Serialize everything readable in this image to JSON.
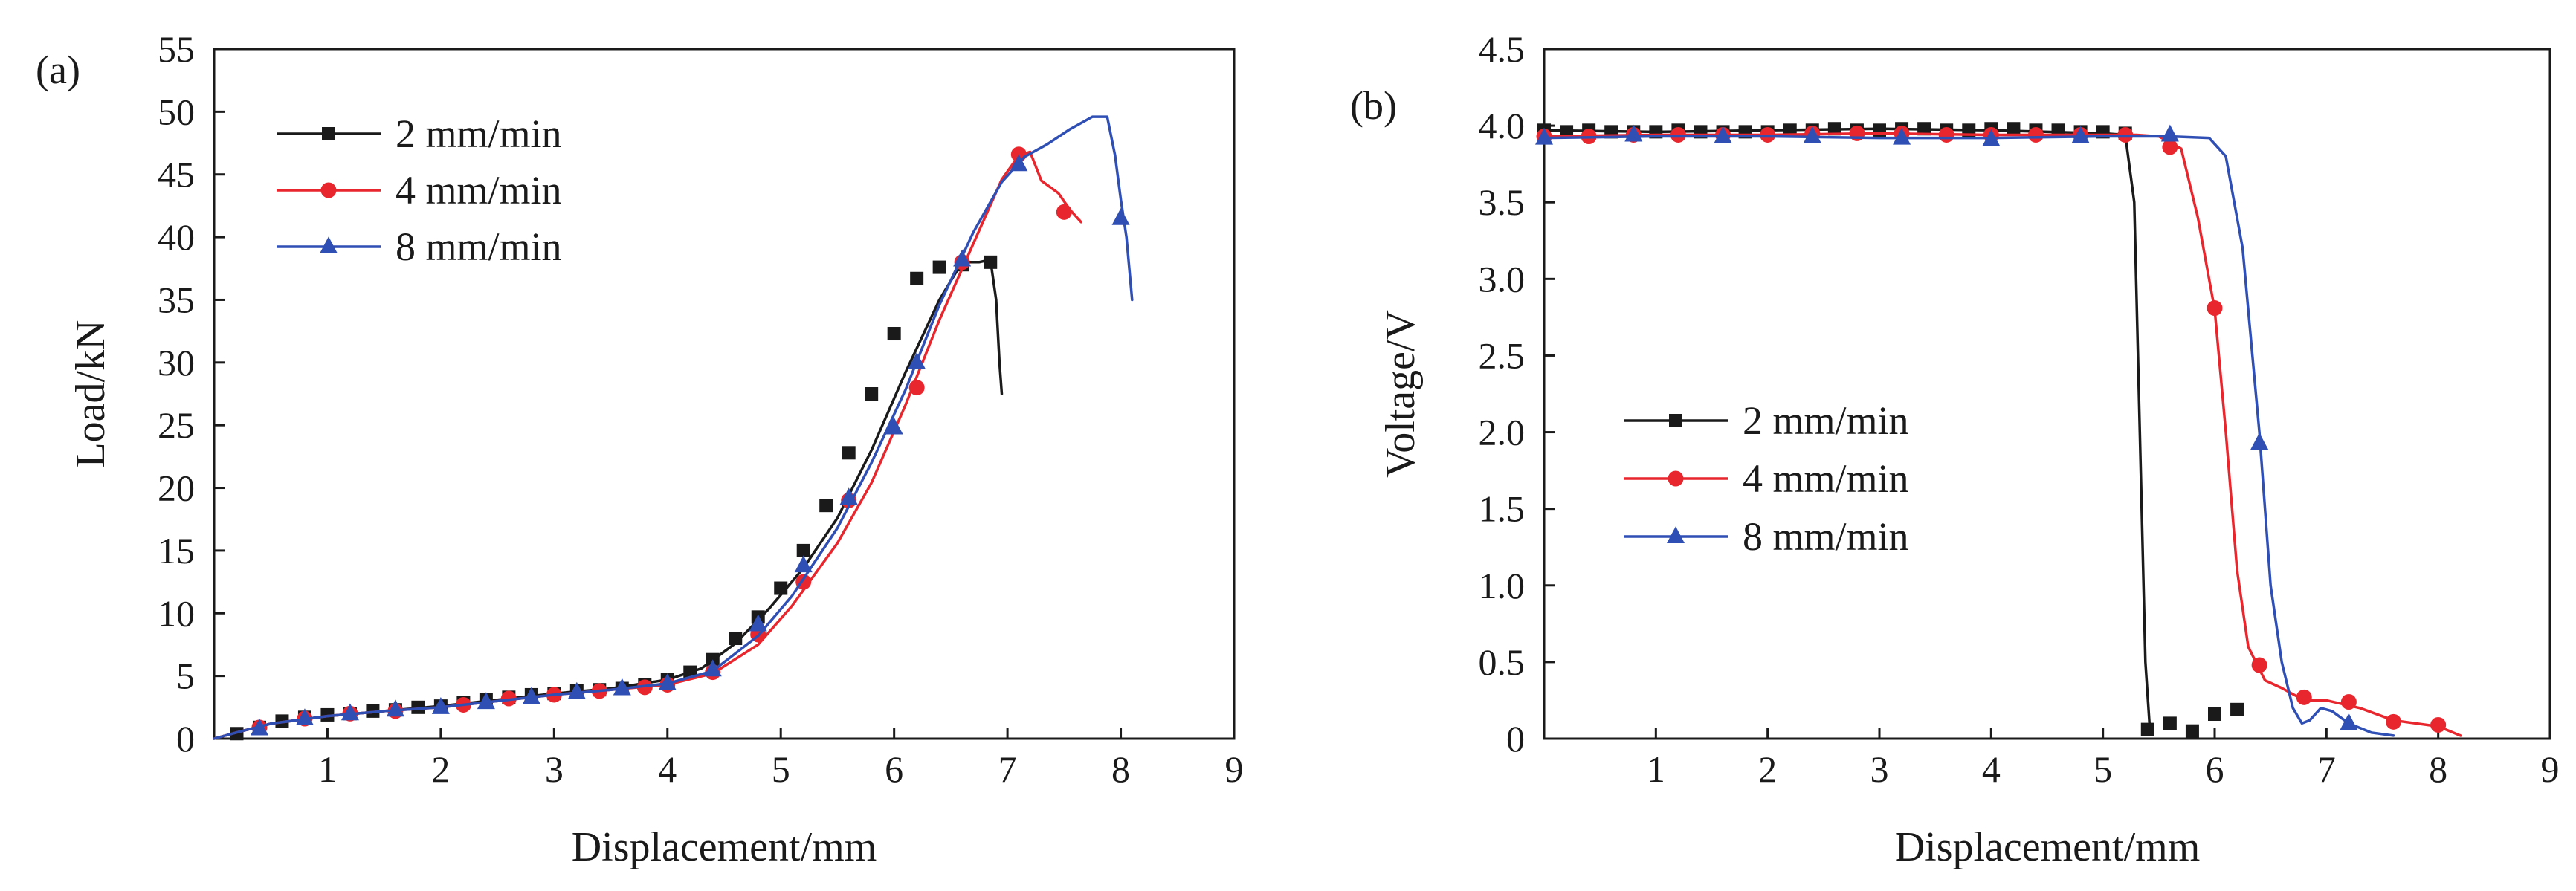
{
  "chart_data": [
    {
      "type": "line",
      "panel_label": "(a)",
      "xlabel": "Displacement/mm",
      "ylabel": "Load/kN",
      "xlim": [
        0,
        9
      ],
      "ylim": [
        0,
        55
      ],
      "xticks": [
        1,
        2,
        3,
        4,
        5,
        6,
        7,
        8,
        9
      ],
      "yticks": [
        0,
        5,
        10,
        15,
        20,
        25,
        30,
        35,
        40,
        45,
        50,
        55
      ],
      "legend_position": "top-left",
      "series": [
        {
          "name": "2 mm/min",
          "color": "#1a1a1a",
          "marker": "square",
          "line": [
            [
              0,
              0
            ],
            [
              0.2,
              0.5
            ],
            [
              0.5,
              1.2
            ],
            [
              1,
              1.8
            ],
            [
              1.5,
              2.2
            ],
            [
              2,
              2.6
            ],
            [
              2.5,
              3.1
            ],
            [
              3,
              3.6
            ],
            [
              3.5,
              4.0
            ],
            [
              4,
              4.7
            ],
            [
              4.3,
              5.6
            ],
            [
              4.6,
              7.6
            ],
            [
              4.9,
              10.4
            ],
            [
              5.2,
              13.6
            ],
            [
              5.5,
              17.6
            ],
            [
              5.8,
              23.0
            ],
            [
              6.1,
              29.2
            ],
            [
              6.4,
              35.0
            ],
            [
              6.6,
              38.0
            ],
            [
              6.75,
              38.0
            ],
            [
              6.85,
              38.2
            ],
            [
              6.9,
              35.0
            ],
            [
              6.93,
              30.0
            ],
            [
              6.95,
              27.5
            ]
          ],
          "markers": [
            [
              0.2,
              0.4
            ],
            [
              0.4,
              0.9
            ],
            [
              0.6,
              1.4
            ],
            [
              0.8,
              1.7
            ],
            [
              1.0,
              1.9
            ],
            [
              1.2,
              2.0
            ],
            [
              1.4,
              2.2
            ],
            [
              1.6,
              2.3
            ],
            [
              1.8,
              2.5
            ],
            [
              2.0,
              2.6
            ],
            [
              2.2,
              2.9
            ],
            [
              2.4,
              3.1
            ],
            [
              2.6,
              3.3
            ],
            [
              2.8,
              3.5
            ],
            [
              3.0,
              3.6
            ],
            [
              3.2,
              3.8
            ],
            [
              3.4,
              3.9
            ],
            [
              3.6,
              4.0
            ],
            [
              3.8,
              4.3
            ],
            [
              4.0,
              4.7
            ],
            [
              4.2,
              5.3
            ],
            [
              4.4,
              6.3
            ],
            [
              4.6,
              8.0
            ],
            [
              4.8,
              9.7
            ],
            [
              5.0,
              12.0
            ],
            [
              5.2,
              15.0
            ],
            [
              5.4,
              18.6
            ],
            [
              5.6,
              22.8
            ],
            [
              5.8,
              27.5
            ],
            [
              6.0,
              32.3
            ],
            [
              6.2,
              36.7
            ],
            [
              6.4,
              37.6
            ],
            [
              6.6,
              37.8
            ],
            [
              6.85,
              38.0
            ]
          ]
        },
        {
          "name": "4 mm/min",
          "color": "#e8262d",
          "marker": "circle",
          "line": [
            [
              0,
              0
            ],
            [
              0.2,
              0.5
            ],
            [
              0.5,
              1.2
            ],
            [
              1,
              1.8
            ],
            [
              1.5,
              2.2
            ],
            [
              2,
              2.5
            ],
            [
              2.5,
              3.0
            ],
            [
              3,
              3.5
            ],
            [
              3.5,
              3.9
            ],
            [
              4,
              4.3
            ],
            [
              4.4,
              5.2
            ],
            [
              4.8,
              7.5
            ],
            [
              5.1,
              10.6
            ],
            [
              5.5,
              15.6
            ],
            [
              5.8,
              20.4
            ],
            [
              6.1,
              26.6
            ],
            [
              6.4,
              33.4
            ],
            [
              6.7,
              39.5
            ],
            [
              6.95,
              44.6
            ],
            [
              7.1,
              46.5
            ],
            [
              7.2,
              46.8
            ],
            [
              7.3,
              44.5
            ],
            [
              7.45,
              43.5
            ],
            [
              7.55,
              42.2
            ],
            [
              7.65,
              41.2
            ]
          ],
          "markers": [
            [
              0.4,
              0.9
            ],
            [
              0.8,
              1.6
            ],
            [
              1.2,
              2.0
            ],
            [
              1.6,
              2.2
            ],
            [
              2.2,
              2.7
            ],
            [
              2.6,
              3.2
            ],
            [
              3.0,
              3.5
            ],
            [
              3.4,
              3.8
            ],
            [
              3.8,
              4.1
            ],
            [
              4.0,
              4.3
            ],
            [
              4.4,
              5.3
            ],
            [
              4.8,
              8.3
            ],
            [
              5.2,
              12.5
            ],
            [
              5.6,
              19.0
            ],
            [
              6.2,
              28.0
            ],
            [
              6.6,
              38.0
            ],
            [
              7.1,
              46.6
            ],
            [
              7.5,
              42.0
            ]
          ]
        },
        {
          "name": "8 mm/min",
          "color": "#2f4fb5",
          "marker": "triangle",
          "line": [
            [
              0,
              0
            ],
            [
              0.2,
              0.5
            ],
            [
              0.5,
              1.2
            ],
            [
              1,
              1.8
            ],
            [
              1.5,
              2.2
            ],
            [
              2,
              2.5
            ],
            [
              2.5,
              3.0
            ],
            [
              3,
              3.5
            ],
            [
              3.5,
              3.9
            ],
            [
              4,
              4.4
            ],
            [
              4.4,
              5.4
            ],
            [
              4.8,
              8.2
            ],
            [
              5.1,
              11.4
            ],
            [
              5.5,
              16.8
            ],
            [
              5.8,
              22.0
            ],
            [
              6.1,
              27.8
            ],
            [
              6.4,
              34.6
            ],
            [
              6.7,
              40.4
            ],
            [
              6.95,
              44.4
            ],
            [
              7.15,
              46.4
            ],
            [
              7.35,
              47.4
            ],
            [
              7.55,
              48.6
            ],
            [
              7.75,
              49.6
            ],
            [
              7.88,
              49.6
            ],
            [
              7.95,
              46.5
            ],
            [
              8.0,
              43.0
            ],
            [
              8.05,
              40.0
            ],
            [
              8.1,
              35.0
            ]
          ],
          "markers": [
            [
              0.4,
              0.8
            ],
            [
              0.8,
              1.6
            ],
            [
              1.2,
              2.0
            ],
            [
              1.6,
              2.3
            ],
            [
              2.0,
              2.5
            ],
            [
              2.4,
              2.9
            ],
            [
              2.8,
              3.3
            ],
            [
              3.2,
              3.7
            ],
            [
              3.6,
              4.0
            ],
            [
              4.0,
              4.4
            ],
            [
              4.4,
              5.5
            ],
            [
              4.8,
              9.1
            ],
            [
              5.2,
              13.8
            ],
            [
              5.6,
              19.2
            ],
            [
              6.0,
              24.8
            ],
            [
              6.2,
              30.0
            ],
            [
              6.6,
              38.2
            ],
            [
              7.1,
              45.8
            ],
            [
              8.0,
              41.5
            ]
          ]
        }
      ]
    },
    {
      "type": "line",
      "panel_label": "(b)",
      "xlabel": "Displacement/mm",
      "ylabel": "Voltage/V",
      "xlim": [
        0,
        9
      ],
      "ylim": [
        0,
        4.5
      ],
      "xticks": [
        1,
        2,
        3,
        4,
        5,
        6,
        7,
        8,
        9
      ],
      "yticks": [
        "0",
        "0.5",
        "1.0",
        "1.5",
        "2.0",
        "2.5",
        "3.0",
        "3.5",
        "4.0",
        "4.5"
      ],
      "legend_position": "center-left",
      "series": [
        {
          "name": "2 mm/min",
          "color": "#1a1a1a",
          "marker": "square",
          "line": [
            [
              0,
              3.97
            ],
            [
              1,
              3.96
            ],
            [
              2,
              3.97
            ],
            [
              3,
              3.98
            ],
            [
              4,
              3.97
            ],
            [
              5,
              3.95
            ],
            [
              5.2,
              3.94
            ],
            [
              5.28,
              3.5
            ],
            [
              5.33,
              2.0
            ],
            [
              5.38,
              0.5
            ],
            [
              5.42,
              0.06
            ]
          ],
          "markers": [
            [
              0,
              3.97
            ],
            [
              0.2,
              3.96
            ],
            [
              0.4,
              3.97
            ],
            [
              0.6,
              3.96
            ],
            [
              0.8,
              3.96
            ],
            [
              1.0,
              3.96
            ],
            [
              1.2,
              3.97
            ],
            [
              1.4,
              3.96
            ],
            [
              1.6,
              3.96
            ],
            [
              1.8,
              3.96
            ],
            [
              2.0,
              3.96
            ],
            [
              2.2,
              3.97
            ],
            [
              2.4,
              3.97
            ],
            [
              2.6,
              3.98
            ],
            [
              2.8,
              3.97
            ],
            [
              3.0,
              3.97
            ],
            [
              3.2,
              3.98
            ],
            [
              3.4,
              3.98
            ],
            [
              3.6,
              3.97
            ],
            [
              3.8,
              3.97
            ],
            [
              4.0,
              3.98
            ],
            [
              4.2,
              3.98
            ],
            [
              4.4,
              3.97
            ],
            [
              4.6,
              3.97
            ],
            [
              4.8,
              3.96
            ],
            [
              5.0,
              3.96
            ],
            [
              5.2,
              3.95
            ],
            [
              5.4,
              0.06
            ],
            [
              5.6,
              0.1
            ],
            [
              5.8,
              0.05
            ],
            [
              6.0,
              0.16
            ],
            [
              6.2,
              0.19
            ]
          ]
        },
        {
          "name": "4 mm/min",
          "color": "#e8262d",
          "marker": "circle",
          "line": [
            [
              0,
              3.93
            ],
            [
              1,
              3.94
            ],
            [
              2,
              3.94
            ],
            [
              3,
              3.95
            ],
            [
              4,
              3.94
            ],
            [
              5,
              3.94
            ],
            [
              5.3,
              3.94
            ],
            [
              5.5,
              3.93
            ],
            [
              5.7,
              3.85
            ],
            [
              5.85,
              3.4
            ],
            [
              6.0,
              2.8
            ],
            [
              6.1,
              2.0
            ],
            [
              6.2,
              1.1
            ],
            [
              6.3,
              0.6
            ],
            [
              6.45,
              0.38
            ],
            [
              6.6,
              0.33
            ],
            [
              6.8,
              0.25
            ],
            [
              7.0,
              0.25
            ],
            [
              7.3,
              0.2
            ],
            [
              7.6,
              0.12
            ],
            [
              8.0,
              0.08
            ],
            [
              8.2,
              0.02
            ]
          ],
          "markers": [
            [
              0,
              3.93
            ],
            [
              0.4,
              3.93
            ],
            [
              0.8,
              3.94
            ],
            [
              1.2,
              3.94
            ],
            [
              1.6,
              3.94
            ],
            [
              2.0,
              3.94
            ],
            [
              2.4,
              3.95
            ],
            [
              2.8,
              3.95
            ],
            [
              3.2,
              3.95
            ],
            [
              3.6,
              3.94
            ],
            [
              4.0,
              3.94
            ],
            [
              4.4,
              3.94
            ],
            [
              4.8,
              3.94
            ],
            [
              5.2,
              3.94
            ],
            [
              5.6,
              3.86
            ],
            [
              6.0,
              2.81
            ],
            [
              6.4,
              0.48
            ],
            [
              6.8,
              0.27
            ],
            [
              7.2,
              0.24
            ],
            [
              7.6,
              0.11
            ],
            [
              8.0,
              0.09
            ]
          ]
        },
        {
          "name": "8 mm/min",
          "color": "#2f4fb5",
          "marker": "triangle",
          "line": [
            [
              0,
              3.92
            ],
            [
              1,
              3.93
            ],
            [
              2,
              3.93
            ],
            [
              3,
              3.92
            ],
            [
              4,
              3.92
            ],
            [
              5,
              3.93
            ],
            [
              5.6,
              3.93
            ],
            [
              5.95,
              3.92
            ],
            [
              6.1,
              3.8
            ],
            [
              6.25,
              3.2
            ],
            [
              6.4,
              2.0
            ],
            [
              6.5,
              1.0
            ],
            [
              6.6,
              0.5
            ],
            [
              6.7,
              0.2
            ],
            [
              6.78,
              0.1
            ],
            [
              6.85,
              0.12
            ],
            [
              6.95,
              0.2
            ],
            [
              7.05,
              0.18
            ],
            [
              7.2,
              0.1
            ],
            [
              7.4,
              0.04
            ],
            [
              7.6,
              0.02
            ]
          ],
          "markers": [
            [
              0,
              3.92
            ],
            [
              0.8,
              3.94
            ],
            [
              1.6,
              3.93
            ],
            [
              2.4,
              3.93
            ],
            [
              3.2,
              3.92
            ],
            [
              4.0,
              3.91
            ],
            [
              4.8,
              3.93
            ],
            [
              5.6,
              3.94
            ],
            [
              6.4,
              1.93
            ],
            [
              7.2,
              0.1
            ]
          ]
        }
      ]
    }
  ]
}
